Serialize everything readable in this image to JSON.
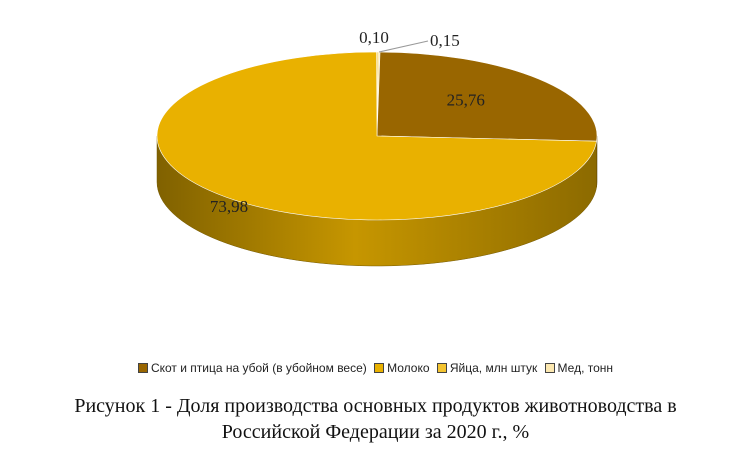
{
  "chart_data": {
    "type": "pie",
    "title": "",
    "series": [
      {
        "name": "Скот и птица на убой (в убойном весе)",
        "value": 25.76,
        "label": "25,76",
        "color": "#996600"
      },
      {
        "name": "Молоко",
        "value": 73.98,
        "label": "73,98",
        "color": "#E9B100"
      },
      {
        "name": "Яйца, млн штук",
        "value": 0.1,
        "label": "0,10",
        "color": "#F4C430"
      },
      {
        "name": "Мед, тонн",
        "value": 0.15,
        "label": "0,15",
        "color": "#FCE8B0"
      }
    ],
    "legend_position": "bottom"
  },
  "caption": {
    "line1": "Рисунок 1 - Доля производства основных продуктов животноводства в",
    "line2": "Российской Федерации за 2020 г., %"
  }
}
